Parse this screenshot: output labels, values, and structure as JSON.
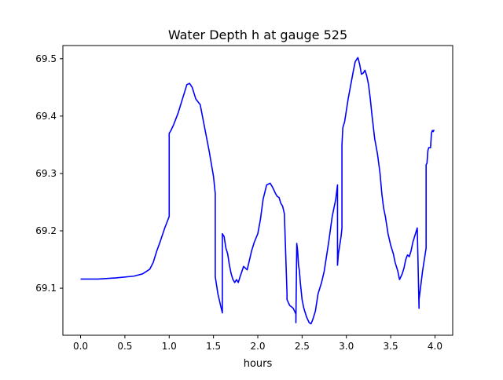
{
  "chart_data": {
    "type": "line",
    "title": "Water Depth h at gauge 525",
    "xlabel": "hours",
    "ylabel": "",
    "xlim": [
      -0.2,
      4.2
    ],
    "ylim": [
      69.018,
      69.523
    ],
    "xticks": [
      0.0,
      0.5,
      1.0,
      1.5,
      2.0,
      2.5,
      3.0,
      3.5,
      4.0
    ],
    "xtick_labels": [
      "0.0",
      "0.5",
      "1.0",
      "1.5",
      "2.0",
      "2.5",
      "3.0",
      "3.5",
      "4.0"
    ],
    "yticks": [
      69.1,
      69.2,
      69.3,
      69.4,
      69.5
    ],
    "ytick_labels": [
      "69.1",
      "69.2",
      "69.3",
      "69.4",
      "69.5"
    ],
    "grid": false,
    "series": [
      {
        "color": "#0000ff",
        "x": [
          0.0,
          0.2,
          0.4,
          0.6,
          0.7,
          0.78,
          0.82,
          0.86,
          0.9,
          0.95,
          1.0,
          1.0,
          1.02,
          1.05,
          1.1,
          1.15,
          1.2,
          1.23,
          1.26,
          1.3,
          1.33,
          1.35,
          1.4,
          1.45,
          1.5,
          1.52,
          1.52,
          1.55,
          1.58,
          1.6,
          1.6,
          1.62,
          1.64,
          1.66,
          1.68,
          1.7,
          1.72,
          1.74,
          1.76,
          1.78,
          1.8,
          1.84,
          1.88,
          1.9,
          1.93,
          1.96,
          2.0,
          2.03,
          2.06,
          2.1,
          2.14,
          2.17,
          2.2,
          2.22,
          2.24,
          2.26,
          2.28,
          2.3,
          2.33,
          2.33,
          2.36,
          2.4,
          2.43,
          2.43,
          2.44,
          2.45,
          2.46,
          2.47,
          2.48,
          2.5,
          2.52,
          2.55,
          2.58,
          2.6,
          2.62,
          2.65,
          2.68,
          2.72,
          2.75,
          2.8,
          2.84,
          2.88,
          2.9,
          2.9,
          2.91,
          2.94,
          2.95,
          2.95,
          2.96,
          2.98,
          3.0,
          3.02,
          3.05,
          3.08,
          3.1,
          3.13,
          3.15,
          3.17,
          3.19,
          3.21,
          3.23,
          3.25,
          3.27,
          3.29,
          3.32,
          3.35,
          3.38,
          3.4,
          3.42,
          3.44,
          3.47,
          3.5,
          3.53,
          3.55,
          3.58,
          3.6,
          3.63,
          3.65,
          3.67,
          3.69,
          3.71,
          3.73,
          3.75,
          3.78,
          3.8,
          3.82,
          3.82,
          3.84,
          3.86,
          3.88,
          3.9,
          3.9,
          3.91,
          3.92,
          3.93,
          3.95,
          3.96,
          3.97,
          3.98,
          3.99
        ],
        "y": [
          69.116,
          69.116,
          69.118,
          69.121,
          69.125,
          69.133,
          69.145,
          69.165,
          69.182,
          69.205,
          69.225,
          69.37,
          69.375,
          69.385,
          69.405,
          69.43,
          69.455,
          69.457,
          69.45,
          69.43,
          69.424,
          69.42,
          69.38,
          69.34,
          69.295,
          69.265,
          69.12,
          69.09,
          69.07,
          69.057,
          69.195,
          69.19,
          69.17,
          69.16,
          69.14,
          69.125,
          69.115,
          69.11,
          69.115,
          69.11,
          69.12,
          69.138,
          69.132,
          69.145,
          69.165,
          69.18,
          69.195,
          69.22,
          69.255,
          69.28,
          69.283,
          69.275,
          69.265,
          69.26,
          69.258,
          69.248,
          69.243,
          69.23,
          69.09,
          69.08,
          69.07,
          69.065,
          69.055,
          69.04,
          69.178,
          69.165,
          69.14,
          69.13,
          69.11,
          69.08,
          69.065,
          69.05,
          69.04,
          69.038,
          69.045,
          69.06,
          69.09,
          69.11,
          69.13,
          69.18,
          69.225,
          69.255,
          69.28,
          69.14,
          69.16,
          69.19,
          69.205,
          69.35,
          69.38,
          69.39,
          69.41,
          69.43,
          69.455,
          69.48,
          69.495,
          69.502,
          69.49,
          69.473,
          69.475,
          69.48,
          69.47,
          69.455,
          69.43,
          69.4,
          69.36,
          69.335,
          69.3,
          69.265,
          69.24,
          69.225,
          69.195,
          69.175,
          69.16,
          69.145,
          69.13,
          69.115,
          69.125,
          69.135,
          69.15,
          69.158,
          69.155,
          69.165,
          69.18,
          69.195,
          69.205,
          69.065,
          69.08,
          69.105,
          69.13,
          69.15,
          69.17,
          69.315,
          69.318,
          69.34,
          69.345,
          69.345,
          69.37,
          69.375,
          69.373,
          69.376
        ]
      }
    ]
  }
}
